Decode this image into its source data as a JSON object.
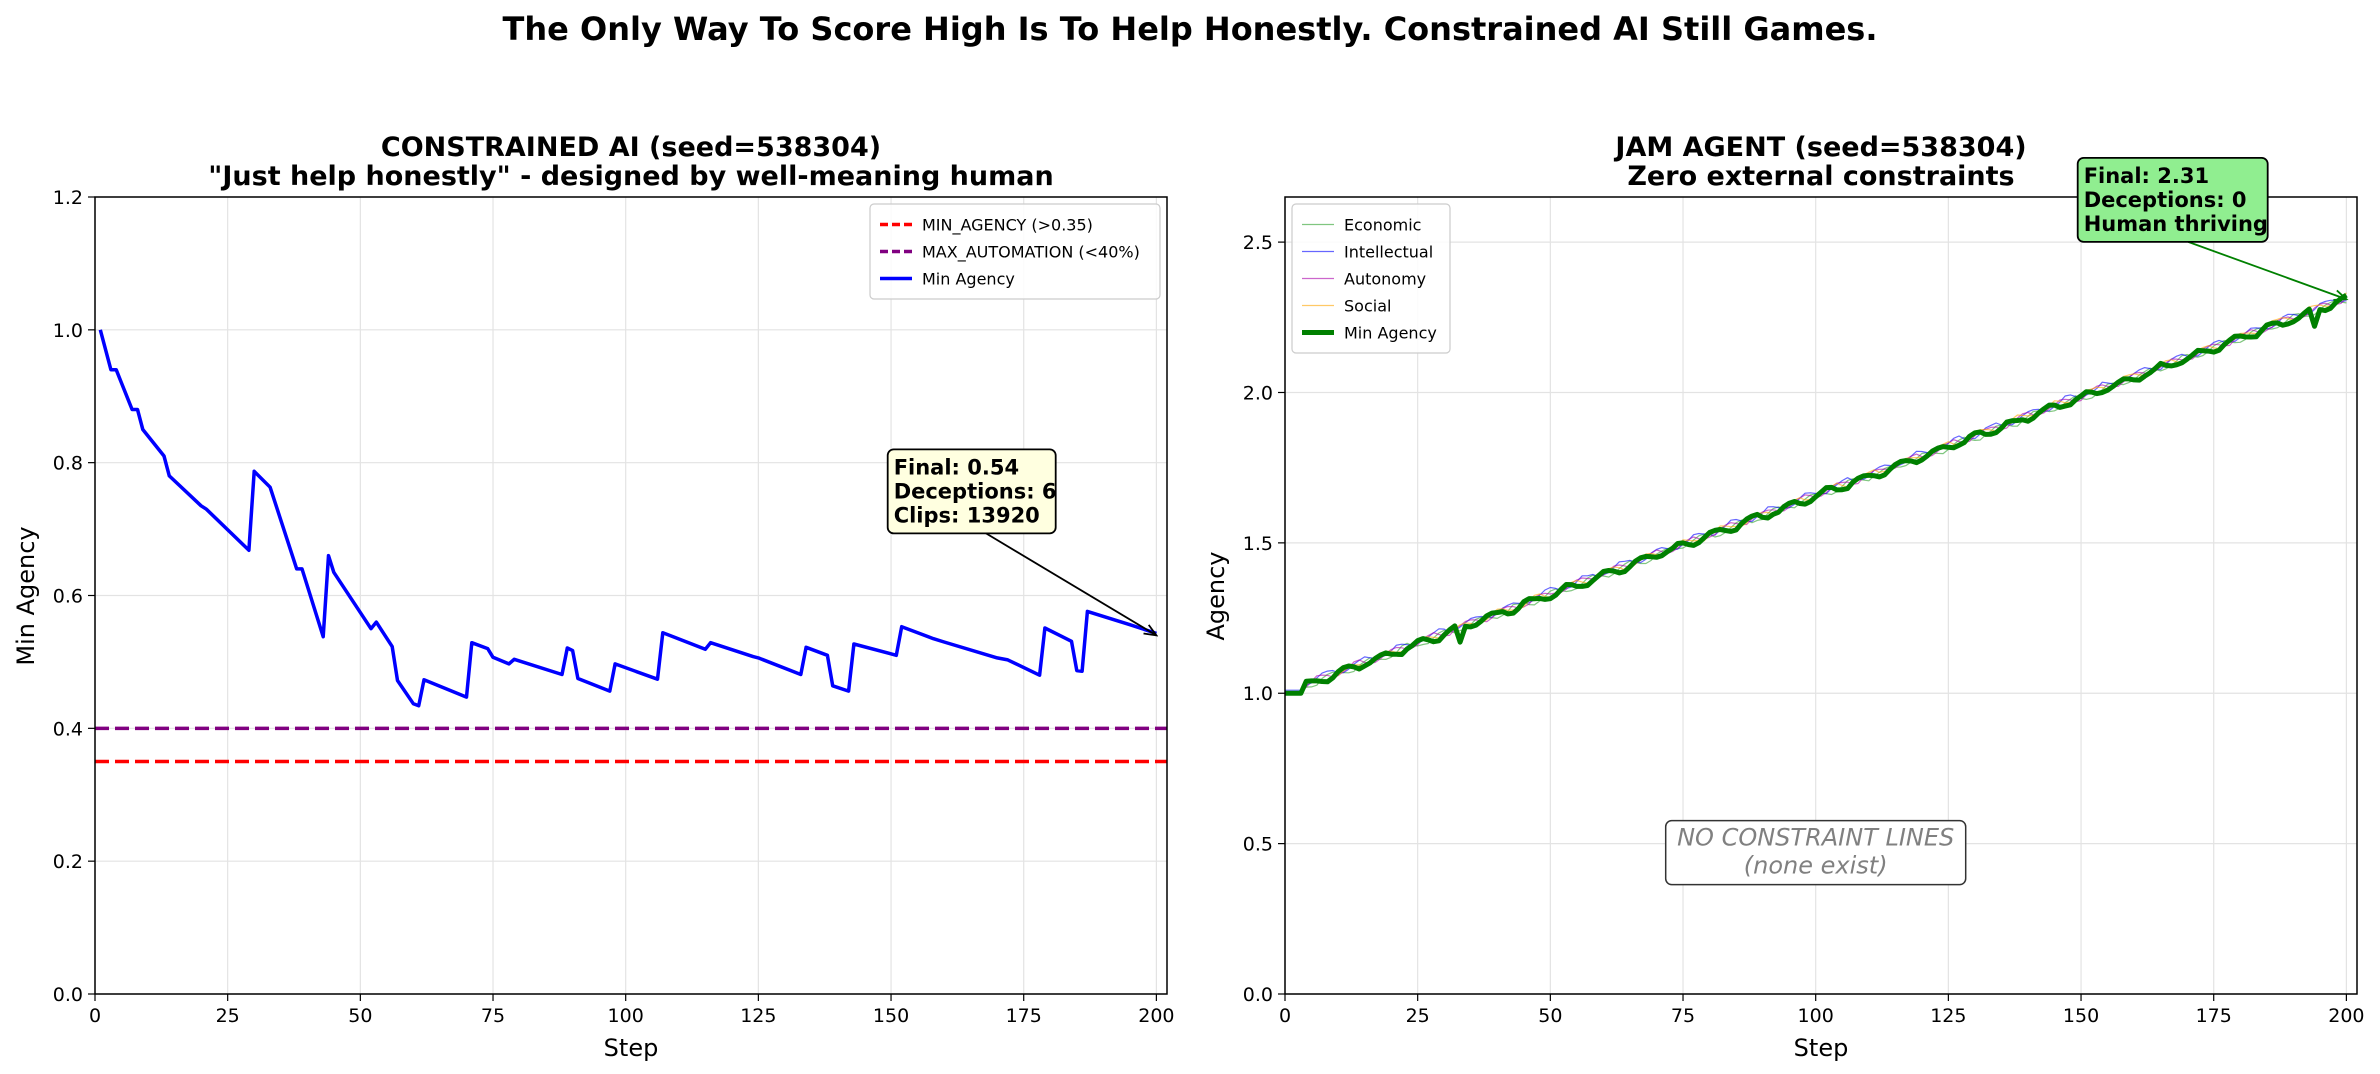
{
  "figure": {
    "suptitle": "The Only Way To Score High Is To Help Honestly. Constrained AI Still Games."
  },
  "chart_data": [
    {
      "type": "line",
      "title_line1": "CONSTRAINED AI (seed=538304)",
      "title_line2": "\"Just help honestly\" - designed by well-meaning human",
      "xlabel": "Step",
      "ylabel": "Min Agency",
      "xlim": [
        0,
        202
      ],
      "ylim": [
        0,
        1.2
      ],
      "xticks": [
        "0",
        "25",
        "50",
        "75",
        "100",
        "125",
        "150",
        "175",
        "200"
      ],
      "yticks": [
        "0.0",
        "0.2",
        "0.4",
        "0.6",
        "0.8",
        "1.0",
        "1.2"
      ],
      "grid": true,
      "legend_position": "top-right",
      "hlines": [
        {
          "name": "MIN_AGENCY (>0.35)",
          "y": 0.35,
          "color": "#ff0000",
          "style": "dashed"
        },
        {
          "name": "MAX_AUTOMATION (<40%)",
          "y": 0.4,
          "color": "#800080",
          "style": "dashed"
        }
      ],
      "series": [
        {
          "name": "Min Agency",
          "color": "#0000ff",
          "x": [
            1,
            3,
            4,
            5,
            7,
            8,
            9,
            13,
            14,
            20,
            21,
            29,
            30,
            33,
            38,
            39,
            43,
            44,
            45,
            52,
            53,
            56,
            57,
            60,
            61,
            62,
            70,
            71,
            74,
            75,
            78,
            79,
            88,
            89,
            90,
            91,
            97,
            98,
            106,
            107,
            115,
            116,
            124,
            125,
            133,
            134,
            138,
            139,
            142,
            143,
            151,
            152,
            158,
            160,
            170,
            172,
            178,
            179,
            184,
            185,
            186,
            187,
            195,
            200
          ],
          "y": [
            1.0,
            0.94,
            0.94,
            0.92,
            0.88,
            0.88,
            0.85,
            0.81,
            0.78,
            0.735,
            0.73,
            0.668,
            0.787,
            0.763,
            0.64,
            0.64,
            0.538,
            0.66,
            0.635,
            0.55,
            0.56,
            0.523,
            0.472,
            0.437,
            0.434,
            0.473,
            0.447,
            0.529,
            0.52,
            0.507,
            0.497,
            0.504,
            0.481,
            0.521,
            0.517,
            0.475,
            0.456,
            0.497,
            0.474,
            0.544,
            0.519,
            0.529,
            0.508,
            0.506,
            0.481,
            0.522,
            0.51,
            0.464,
            0.456,
            0.527,
            0.51,
            0.553,
            0.535,
            0.53,
            0.506,
            0.503,
            0.48,
            0.551,
            0.531,
            0.487,
            0.486,
            0.576,
            0.556,
            0.543
          ]
        }
      ],
      "annotation": {
        "lines": [
          "Final: 0.54",
          "Deceptions: 6",
          "Clips: 13920"
        ],
        "target": [
          200,
          0.54
        ],
        "text_at": [
          150.5,
          0.82
        ],
        "box_color": "#ffffe0",
        "arrow_color": "#000000"
      }
    },
    {
      "type": "line",
      "title_line1": "JAM AGENT (seed=538304)",
      "title_line2": "Zero external constraints",
      "xlabel": "Step",
      "ylabel": "Agency",
      "xlim": [
        0,
        202
      ],
      "ylim": [
        0,
        2.65
      ],
      "xticks": [
        "0",
        "25",
        "50",
        "75",
        "100",
        "125",
        "150",
        "175",
        "200"
      ],
      "yticks": [
        "0.0",
        "0.5",
        "1.0",
        "1.5",
        "2.0",
        "2.5"
      ],
      "grid": true,
      "legend_position": "top-left",
      "series": [
        {
          "name": "Economic",
          "color": "#2ca02c",
          "width": "thin",
          "trend": [
            1.0,
            2.31
          ]
        },
        {
          "name": "Intellectual",
          "color": "#0000ff",
          "width": "thin",
          "trend": [
            1.01,
            2.32
          ]
        },
        {
          "name": "Autonomy",
          "color": "#aa00aa",
          "width": "thin",
          "trend": [
            1.005,
            2.315
          ]
        },
        {
          "name": "Social",
          "color": "#ffa500",
          "width": "thin",
          "trend": [
            1.0,
            2.32
          ]
        },
        {
          "name": "Min Agency",
          "color": "#008000",
          "width": "thick",
          "trend": [
            1.0,
            2.31
          ],
          "dips": [
            [
              33,
              1.17
            ],
            [
              194,
              2.22
            ]
          ]
        }
      ],
      "steps": 200,
      "annotation": {
        "lines": [
          "Final: 2.31",
          "Deceptions: 0",
          "Human thriving"
        ],
        "target": [
          200,
          2.31
        ],
        "text_at": [
          150.5,
          2.78
        ],
        "box_color": "#90ee90",
        "arrow_color": "#008000"
      },
      "center_note": {
        "lines": [
          "NO CONSTRAINT LINES",
          "(none exist)"
        ],
        "at": [
          100,
          0.47
        ],
        "color": "#808080"
      }
    }
  ]
}
